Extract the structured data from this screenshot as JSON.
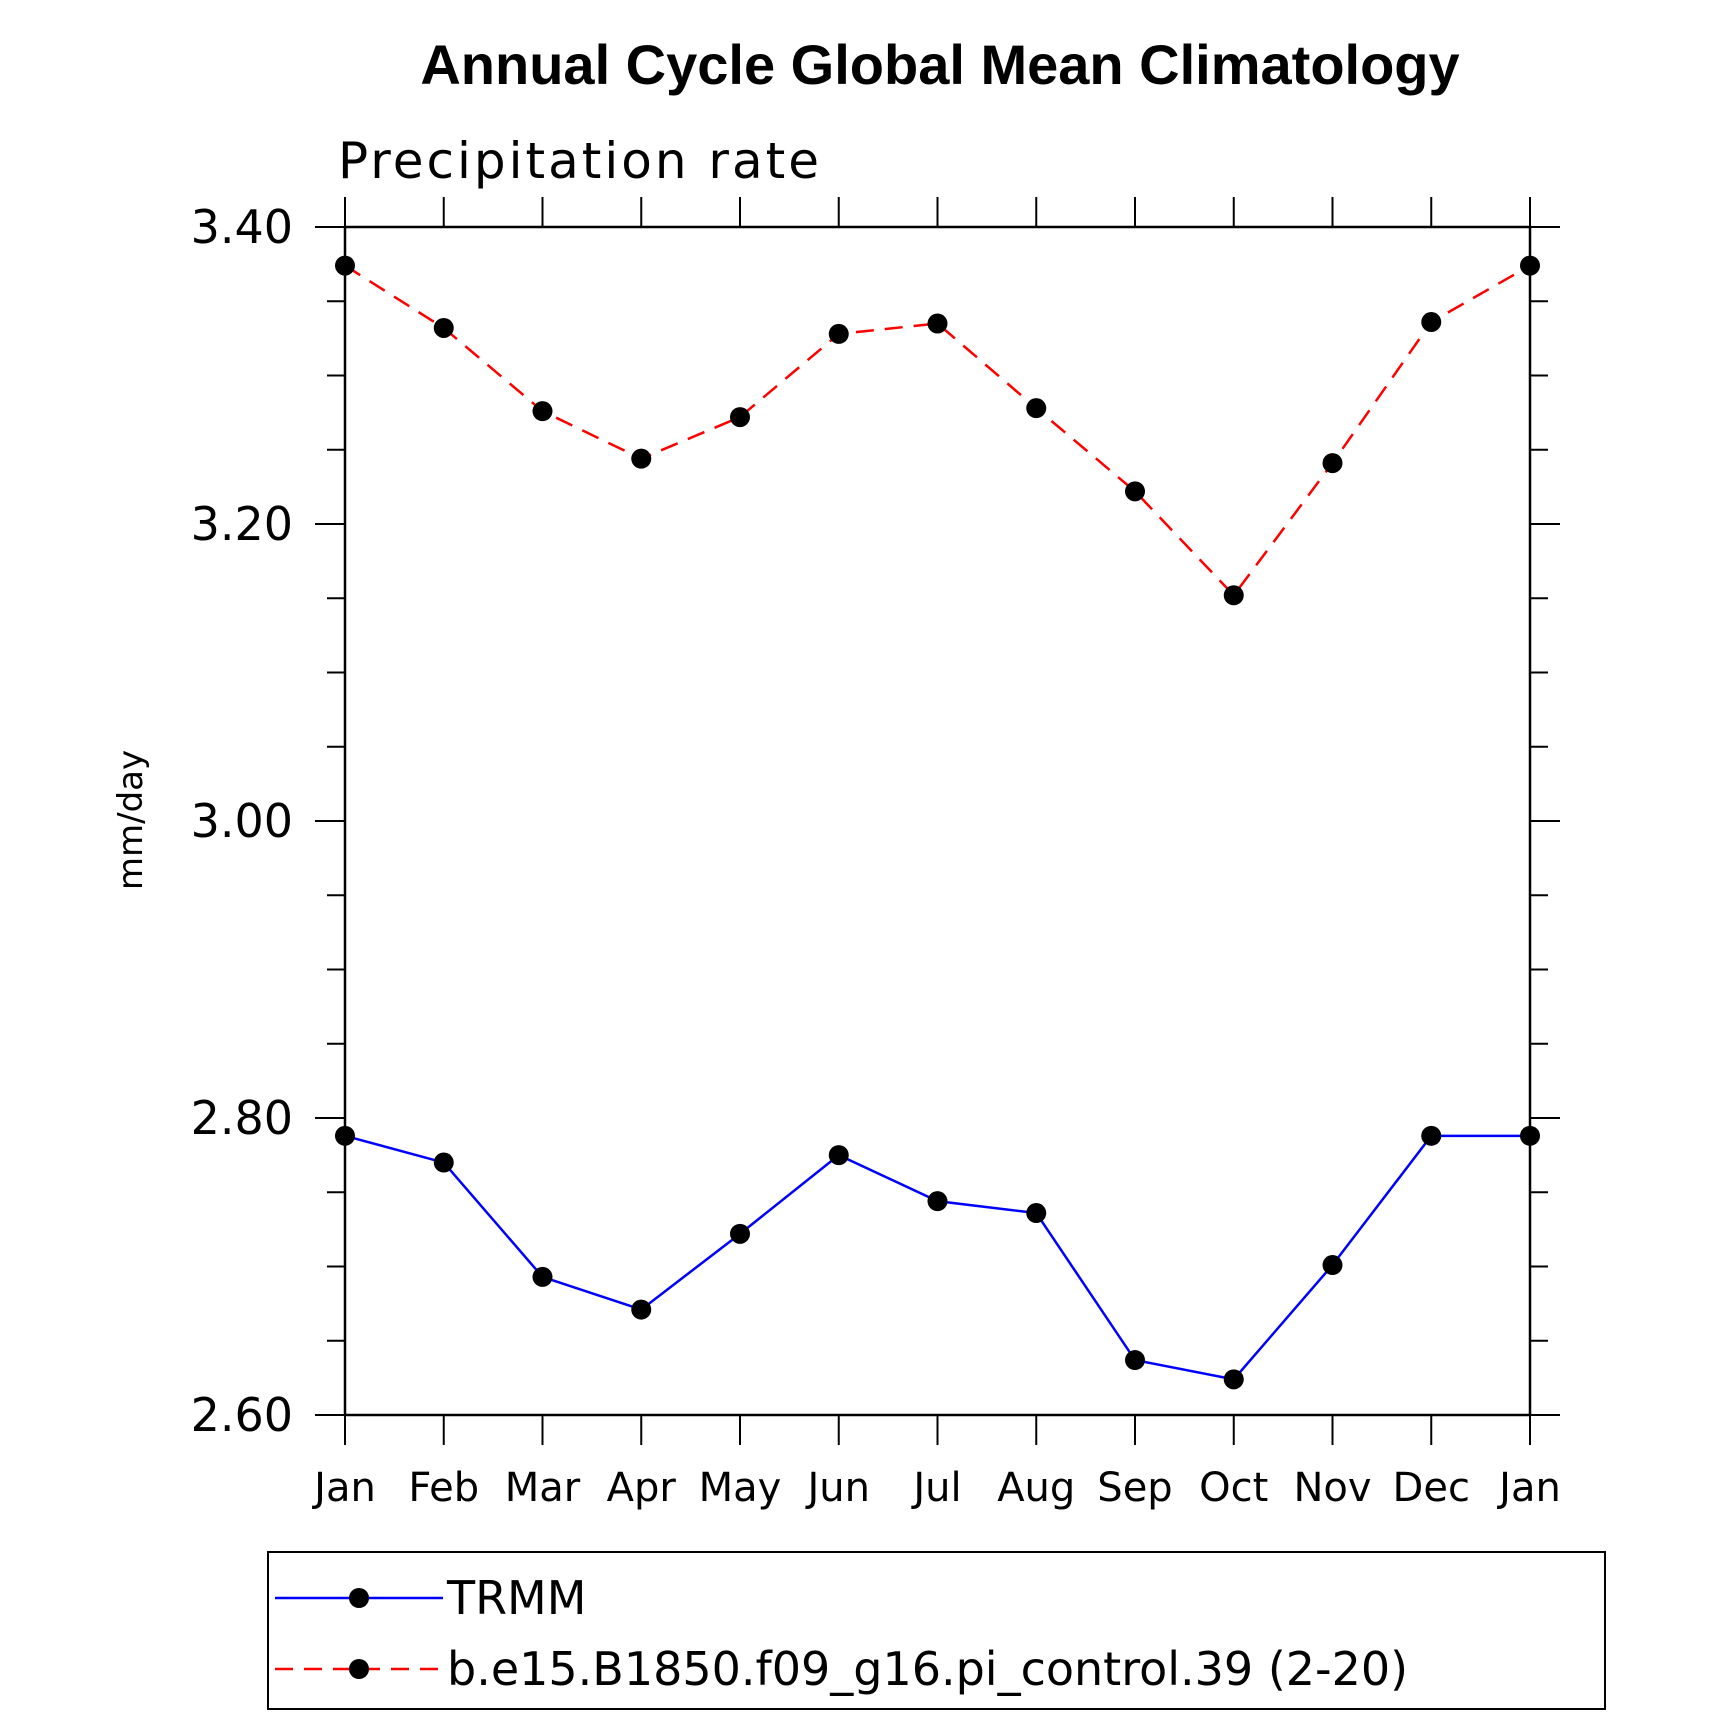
{
  "chart_data": {
    "type": "line",
    "title": "Annual Cycle Global Mean Climatology",
    "subtitle": "Precipitation rate",
    "ylabel": "mm/day",
    "xlabel": "",
    "categories": [
      "Jan",
      "Feb",
      "Mar",
      "Apr",
      "May",
      "Jun",
      "Jul",
      "Aug",
      "Sep",
      "Oct",
      "Nov",
      "Dec",
      "Jan"
    ],
    "ylim": [
      2.6,
      3.4
    ],
    "yticks": [
      "2.60",
      "2.80",
      "3.00",
      "3.20",
      "3.40"
    ],
    "yminor_step": 0.05,
    "grid": false,
    "legend_position": "bottom",
    "series": [
      {
        "name": "TRMM",
        "color": "#0000ff",
        "line_style": "solid",
        "marker": "filled-circle",
        "values": [
          2.788,
          2.77,
          2.693,
          2.671,
          2.722,
          2.775,
          2.744,
          2.736,
          2.637,
          2.624,
          2.701,
          2.788,
          2.788
        ]
      },
      {
        "name": "b.e15.B1850.f09_g16.pi_control.39 (2-20)",
        "color": "#ff0000",
        "line_style": "dashed",
        "marker": "filled-circle",
        "values": [
          3.374,
          3.332,
          3.276,
          3.244,
          3.272,
          3.328,
          3.335,
          3.278,
          3.222,
          3.152,
          3.241,
          3.336,
          3.374
        ]
      }
    ]
  }
}
